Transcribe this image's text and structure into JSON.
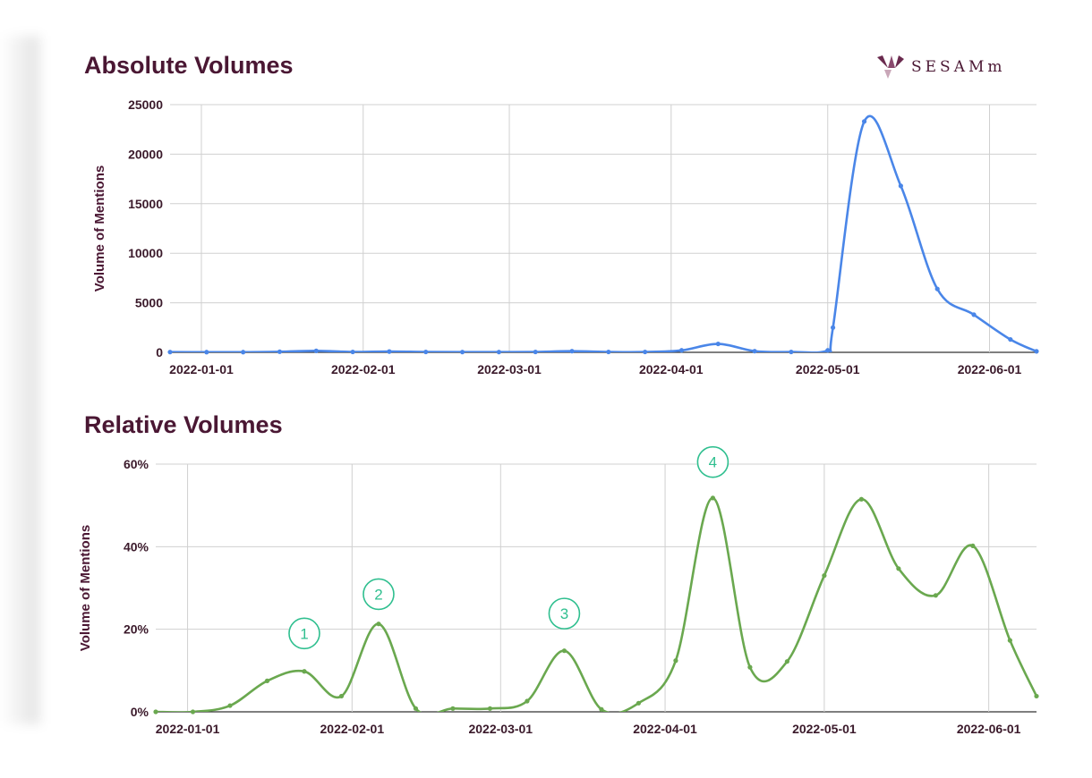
{
  "brand": {
    "logo_text": "SESAMm",
    "colors": {
      "title": "#4a1733",
      "absolute": "#4a86e8",
      "relative": "#6aa84f",
      "annotation": "#2fbf8f",
      "grid": "#d0d0d0"
    }
  },
  "chart_data": [
    {
      "type": "line",
      "title": "Absolute Volumes",
      "ylabel": "Volume of Mentions",
      "xlim": [
        "2021-12-26",
        "2022-06-10"
      ],
      "ylim": [
        0,
        25000
      ],
      "yticks": [
        0,
        5000,
        10000,
        15000,
        20000,
        25000
      ],
      "yticklabels": [
        "0",
        "5000",
        "10000",
        "15000",
        "20000",
        "25000"
      ],
      "xticklabels": [
        "2022-01-01",
        "2022-02-01",
        "2022-03-01",
        "2022-04-01",
        "2022-05-01",
        "2022-06-01"
      ],
      "grid": true,
      "series": [
        {
          "color": "#4a86e8",
          "points": [
            {
              "x": "2021-12-26",
              "y": 30
            },
            {
              "x": "2022-01-02",
              "y": 20
            },
            {
              "x": "2022-01-09",
              "y": 20
            },
            {
              "x": "2022-01-16",
              "y": 60
            },
            {
              "x": "2022-01-23",
              "y": 150
            },
            {
              "x": "2022-01-30",
              "y": 40
            },
            {
              "x": "2022-02-06",
              "y": 80
            },
            {
              "x": "2022-02-13",
              "y": 40
            },
            {
              "x": "2022-02-20",
              "y": 30
            },
            {
              "x": "2022-02-27",
              "y": 30
            },
            {
              "x": "2022-03-06",
              "y": 40
            },
            {
              "x": "2022-03-13",
              "y": 120
            },
            {
              "x": "2022-03-20",
              "y": 40
            },
            {
              "x": "2022-03-27",
              "y": 40
            },
            {
              "x": "2022-04-03",
              "y": 200
            },
            {
              "x": "2022-04-10",
              "y": 850
            },
            {
              "x": "2022-04-17",
              "y": 120
            },
            {
              "x": "2022-04-24",
              "y": 40
            },
            {
              "x": "2022-05-01",
              "y": 200
            },
            {
              "x": "2022-05-02",
              "y": 2500
            },
            {
              "x": "2022-05-08",
              "y": 23300
            },
            {
              "x": "2022-05-15",
              "y": 16800
            },
            {
              "x": "2022-05-22",
              "y": 6400
            },
            {
              "x": "2022-05-29",
              "y": 3800
            },
            {
              "x": "2022-06-05",
              "y": 1300
            },
            {
              "x": "2022-06-10",
              "y": 100
            }
          ]
        }
      ]
    },
    {
      "type": "line",
      "title": "Relative Volumes",
      "ylabel": "Volume of Mentions",
      "xlim": [
        "2021-12-26",
        "2022-06-10"
      ],
      "ylim": [
        0,
        60
      ],
      "yticks": [
        0,
        20,
        40,
        60
      ],
      "yticklabels": [
        "0%",
        "20%",
        "40%",
        "60%"
      ],
      "xticklabels": [
        "2022-01-01",
        "2022-02-01",
        "2022-03-01",
        "2022-04-01",
        "2022-05-01",
        "2022-06-01"
      ],
      "grid": true,
      "series": [
        {
          "color": "#6aa84f",
          "points": [
            {
              "x": "2021-12-26",
              "y": 0
            },
            {
              "x": "2022-01-02",
              "y": 0
            },
            {
              "x": "2022-01-09",
              "y": 1.5
            },
            {
              "x": "2022-01-16",
              "y": 7.5
            },
            {
              "x": "2022-01-23",
              "y": 9.8
            },
            {
              "x": "2022-01-30",
              "y": 3.8
            },
            {
              "x": "2022-02-06",
              "y": 21.3
            },
            {
              "x": "2022-02-13",
              "y": 0.8
            },
            {
              "x": "2022-02-20",
              "y": 0.8
            },
            {
              "x": "2022-02-27",
              "y": 0.8
            },
            {
              "x": "2022-03-06",
              "y": 2.6
            },
            {
              "x": "2022-03-13",
              "y": 14.8
            },
            {
              "x": "2022-03-20",
              "y": 0.6
            },
            {
              "x": "2022-03-27",
              "y": 2.1
            },
            {
              "x": "2022-04-03",
              "y": 12.4
            },
            {
              "x": "2022-04-10",
              "y": 51.8
            },
            {
              "x": "2022-04-17",
              "y": 10.8
            },
            {
              "x": "2022-04-24",
              "y": 12.2
            },
            {
              "x": "2022-05-01",
              "y": 33.0
            },
            {
              "x": "2022-05-08",
              "y": 51.5
            },
            {
              "x": "2022-05-15",
              "y": 34.7
            },
            {
              "x": "2022-05-22",
              "y": 28.2
            },
            {
              "x": "2022-05-29",
              "y": 40.2
            },
            {
              "x": "2022-06-05",
              "y": 17.3
            },
            {
              "x": "2022-06-10",
              "y": 3.8
            }
          ]
        }
      ],
      "annotations": [
        {
          "label": "1",
          "x": "2022-01-23",
          "y": 19.0
        },
        {
          "label": "2",
          "x": "2022-02-06",
          "y": 28.5
        },
        {
          "label": "3",
          "x": "2022-03-13",
          "y": 23.8
        },
        {
          "label": "4",
          "x": "2022-04-10",
          "y": 60.5
        }
      ]
    }
  ]
}
